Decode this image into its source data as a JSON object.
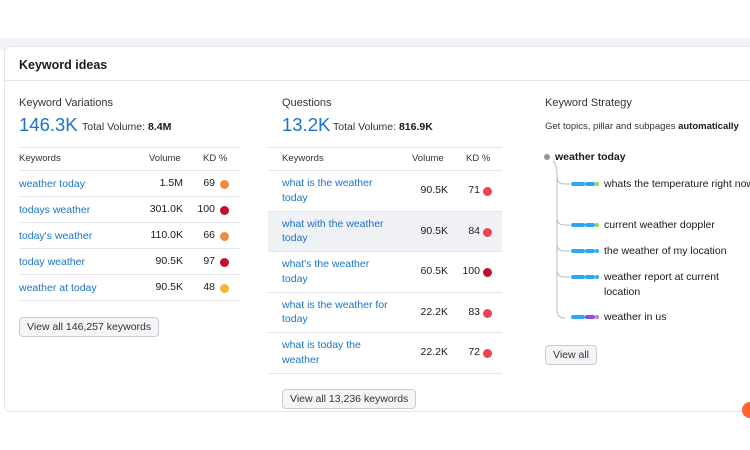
{
  "card": {
    "title": "Keyword ideas"
  },
  "variations": {
    "title": "Keyword Variations",
    "count": "146.3K",
    "total_label": "Total Volume:",
    "total_value": "8.4M",
    "headers": {
      "keyword": "Keywords",
      "volume": "Volume",
      "kd": "KD %"
    },
    "rows": [
      {
        "keyword": "weather today",
        "volume": "1.5M",
        "kd": "69",
        "kd_color": "#f08a3c"
      },
      {
        "keyword": "todays weather",
        "volume": "301.0K",
        "kd": "100",
        "kd_color": "#c4102f"
      },
      {
        "keyword": "today's weather",
        "volume": "110.0K",
        "kd": "66",
        "kd_color": "#f08a3c"
      },
      {
        "keyword": "today weather",
        "volume": "90.5K",
        "kd": "97",
        "kd_color": "#c4102f"
      },
      {
        "keyword": "weather at today",
        "volume": "90.5K",
        "kd": "48",
        "kd_color": "#f5b731"
      }
    ],
    "view_all": "View all 146,257 keywords"
  },
  "questions": {
    "title": "Questions",
    "count": "13.2K",
    "total_label": "Total Volume:",
    "total_value": "816.9K",
    "headers": {
      "keyword": "Keywords",
      "volume": "Volume",
      "kd": "KD %"
    },
    "rows": [
      {
        "keyword": "what is the weather today",
        "volume": "90.5K",
        "kd": "71",
        "kd_color": "#ea4554"
      },
      {
        "keyword": "what with the weather today",
        "volume": "90.5K",
        "kd": "84",
        "kd_color": "#ea4554"
      },
      {
        "keyword": "what's the weather today",
        "volume": "60.5K",
        "kd": "100",
        "kd_color": "#c4102f"
      },
      {
        "keyword": "what is the weather for today",
        "volume": "22.2K",
        "kd": "83",
        "kd_color": "#ea4554"
      },
      {
        "keyword": "what is today the weather",
        "volume": "22.2K",
        "kd": "72",
        "kd_color": "#ea4554"
      }
    ],
    "view_all": "View all 13,236 keywords"
  },
  "strategy": {
    "title": "Keyword Strategy",
    "subtitle_prefix": "Get topics, pillar and subpages",
    "subtitle_bold": "automatically",
    "root": "weather today",
    "leaves": [
      {
        "label": "whats the temperature right now",
        "bar_colors": [
          "#2aa8f2",
          "#2aa8f2",
          "#8ed45e"
        ]
      },
      {
        "label": "current weather doppler",
        "bar_colors": [
          "#2aa8f2",
          "#2aa8f2",
          "#8ed45e"
        ]
      },
      {
        "label": "the weather of my location",
        "bar_colors": [
          "#2aa8f2",
          "#2aa8f2",
          "#2aa8f2"
        ]
      },
      {
        "label": "weather report at current location",
        "bar_colors": [
          "#2aa8f2",
          "#2aa8f2",
          "#2aa8f2"
        ]
      },
      {
        "label": "weather in us",
        "bar_colors": [
          "#2aa8f2",
          "#8a4fe0",
          "#e46fd0"
        ]
      }
    ],
    "view_all": "View all"
  }
}
